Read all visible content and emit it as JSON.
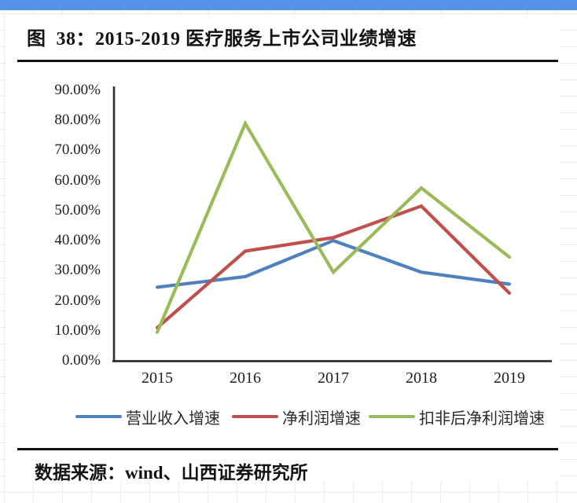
{
  "topbar": {
    "color": "#5693e6"
  },
  "figure": {
    "title": "图  38：2015-2019 医疗服务上市公司业绩增速",
    "source": "数据来源：wind、山西证券研究所"
  },
  "chart_data": {
    "type": "line",
    "title": "图 38：2015-2019 医疗服务上市公司业绩增速",
    "categories": [
      "2015",
      "2016",
      "2017",
      "2018",
      "2019"
    ],
    "series": [
      {
        "name": "营业收入增速",
        "color": "#4F81BD",
        "values": [
          24.5,
          28.0,
          40.0,
          29.5,
          25.5
        ]
      },
      {
        "name": "净利润增速",
        "color": "#C0504D",
        "values": [
          11.0,
          36.5,
          41.0,
          51.5,
          22.5
        ]
      },
      {
        "name": "扣非后净利润增速",
        "color": "#9BBB59",
        "values": [
          9.5,
          79.0,
          29.5,
          57.5,
          34.5
        ]
      }
    ],
    "ytick_labels": [
      "0.00%",
      "10.00%",
      "20.00%",
      "30.00%",
      "40.00%",
      "50.00%",
      "60.00%",
      "70.00%",
      "80.00%",
      "90.00%"
    ],
    "ytick_values": [
      0,
      10,
      20,
      30,
      40,
      50,
      60,
      70,
      80,
      90
    ],
    "ylim": [
      0,
      90
    ],
    "grid": false,
    "legend_position": "bottom",
    "axis_color": "#2e2e2e",
    "source": "数据来源：wind、山西证券研究所"
  }
}
